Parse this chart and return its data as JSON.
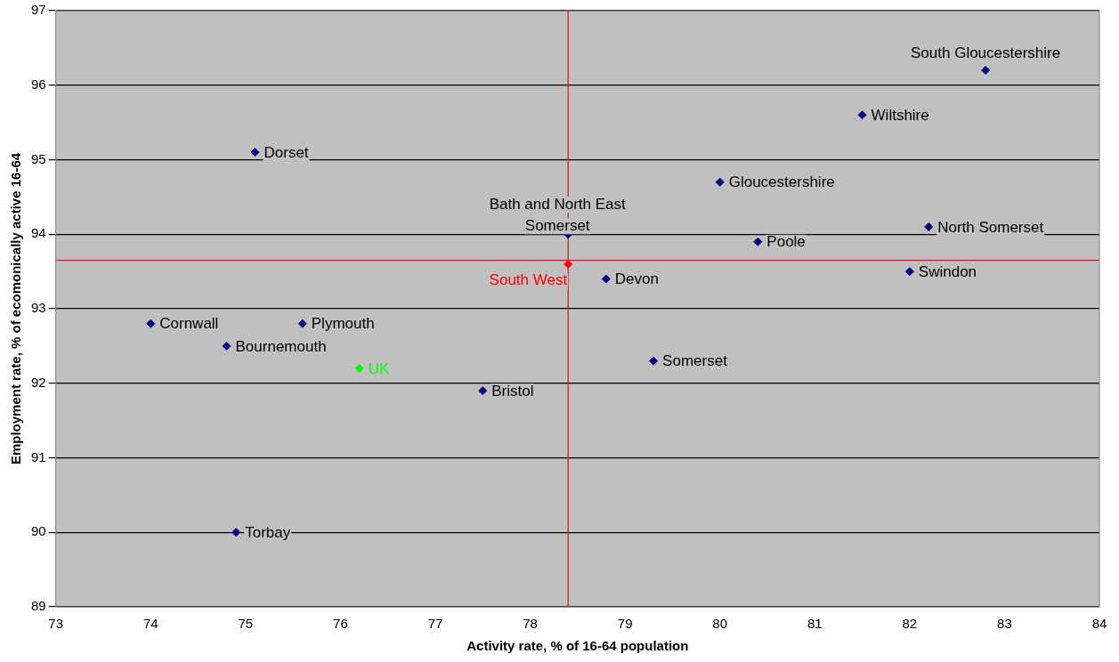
{
  "chart_data": {
    "type": "scatter",
    "xlabel": "Activity rate, % of 16-64 population",
    "ylabel": "Employment rate, % of ecomonically active 16-64",
    "xlim": [
      73,
      84
    ],
    "xticks": [
      73,
      74,
      75,
      76,
      77,
      78,
      79,
      80,
      81,
      82,
      83,
      84
    ],
    "ylim": [
      89,
      97
    ],
    "yticks": [
      89,
      90,
      91,
      92,
      93,
      94,
      95,
      96,
      97
    ],
    "grid": "y",
    "legend": false,
    "marker": "diamond",
    "series": [
      {
        "color": "#000080",
        "x": [
          82.8,
          81.5,
          75.1,
          80.0,
          78.4,
          82.2,
          80.4,
          78.8,
          82.0,
          74.0,
          75.6,
          74.8,
          79.3,
          77.5,
          74.9
        ],
        "values": [
          96.2,
          95.6,
          95.1,
          94.7,
          94.0,
          94.1,
          93.9,
          93.4,
          93.5,
          92.8,
          92.8,
          92.5,
          92.3,
          91.9,
          90.0
        ]
      },
      {
        "color": "#ff0000",
        "x": [
          78.4
        ],
        "values": [
          93.6
        ]
      },
      {
        "color": "#00ff00",
        "x": [
          76.2
        ],
        "values": [
          92.2
        ]
      }
    ],
    "ref_lines": [
      {
        "axis": "x",
        "value": 78.4,
        "color": "#c00000"
      },
      {
        "axis": "y",
        "value": 93.65,
        "color": "#c00000"
      }
    ],
    "annotations": [
      {
        "text": "South Gloucestershire",
        "x": 82.8,
        "y": 96.2
      },
      {
        "text": "Wiltshire",
        "x": 81.5,
        "y": 95.6
      },
      {
        "text": "Dorset",
        "x": 75.1,
        "y": 95.1
      },
      {
        "text": "Gloucestershire",
        "x": 80.0,
        "y": 94.7
      },
      {
        "text": "Bath and North East Somerset",
        "x": 78.4,
        "y": 94.0
      },
      {
        "text": "North Somerset",
        "x": 82.2,
        "y": 94.1
      },
      {
        "text": "Poole",
        "x": 80.4,
        "y": 93.9
      },
      {
        "text": "Devon",
        "x": 78.8,
        "y": 93.4
      },
      {
        "text": "Swindon",
        "x": 82.0,
        "y": 93.5
      },
      {
        "text": "Cornwall",
        "x": 74.0,
        "y": 92.8
      },
      {
        "text": "Plymouth",
        "x": 75.6,
        "y": 92.8
      },
      {
        "text": "Bournemouth",
        "x": 74.8,
        "y": 92.5
      },
      {
        "text": "Somerset",
        "x": 79.3,
        "y": 92.3
      },
      {
        "text": "Bristol",
        "x": 77.5,
        "y": 91.9
      },
      {
        "text": "Torbay",
        "x": 74.9,
        "y": 90.0
      },
      {
        "text": "South West",
        "x": 78.4,
        "y": 93.6
      },
      {
        "text": "UK",
        "x": 76.2,
        "y": 92.2
      }
    ]
  }
}
